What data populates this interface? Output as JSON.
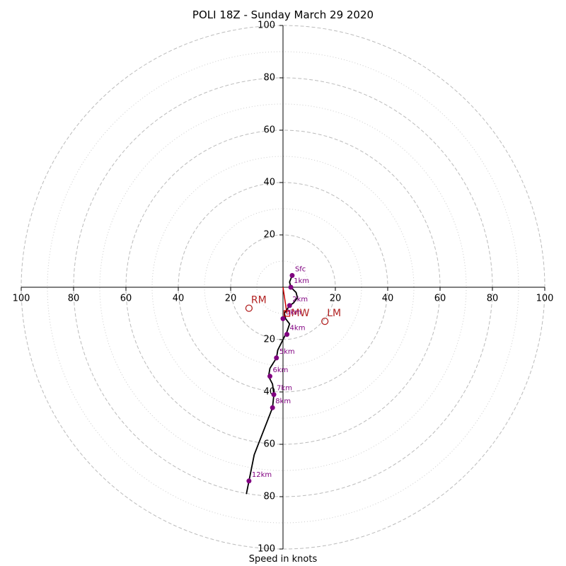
{
  "chart_data": {
    "type": "hodograph",
    "title": "POLI 18Z - Sunday March 29 2020",
    "xlabel": "Speed in knots",
    "axis_range": [
      -100,
      100
    ],
    "ring_major": [
      20,
      40,
      60,
      80,
      100
    ],
    "ring_minor": [
      10,
      30,
      50,
      70,
      90
    ],
    "tick_values": [
      20,
      40,
      60,
      80,
      100
    ],
    "tick_labels": [
      "20",
      "40",
      "60",
      "80",
      "100"
    ],
    "colors": {
      "trace": "#000000",
      "points": "#800080",
      "markers": "#b22222",
      "mean_wind": "#cc0000",
      "grid": "#bbbbbb"
    },
    "trace": [
      [
        3.5,
        4.5
      ],
      [
        2.5,
        2
      ],
      [
        3,
        0
      ],
      [
        5,
        -2
      ],
      [
        5.5,
        -4
      ],
      [
        4,
        -6
      ],
      [
        2.5,
        -7
      ],
      [
        0.5,
        -10
      ],
      [
        1,
        -12
      ],
      [
        2.5,
        -14
      ],
      [
        1.5,
        -17
      ],
      [
        0,
        -20
      ],
      [
        -2,
        -24
      ],
      [
        -2.5,
        -27
      ],
      [
        -5,
        -31
      ],
      [
        -5.5,
        -34
      ],
      [
        -4,
        -37
      ],
      [
        -3.5,
        -41
      ],
      [
        -4,
        -46
      ],
      [
        -11,
        -64
      ],
      [
        -13,
        -74
      ],
      [
        -14,
        -79
      ]
    ],
    "levels": [
      {
        "label": "Sfc",
        "u": 3.5,
        "v": 4.5
      },
      {
        "label": "1km",
        "u": 3,
        "v": 0
      },
      {
        "label": "2km",
        "u": 2.5,
        "v": -7
      },
      {
        "label": "3km",
        "u": 0,
        "v": -12
      },
      {
        "label": "4km",
        "u": 1.5,
        "v": -18
      },
      {
        "label": "5km",
        "u": -2.5,
        "v": -27
      },
      {
        "label": "6km",
        "u": -5,
        "v": -34
      },
      {
        "label": "7km",
        "u": -3.5,
        "v": -41
      },
      {
        "label": "8km",
        "u": -4,
        "v": -46
      },
      {
        "label": "12km",
        "u": -13,
        "v": -74
      }
    ],
    "storm_motion": [
      {
        "label": "RM",
        "u": -13,
        "v": -8
      },
      {
        "label": "LM",
        "u": 16,
        "v": -13
      }
    ],
    "mean_wind": {
      "label": "MW",
      "u": 1.5,
      "v": -10
    }
  }
}
